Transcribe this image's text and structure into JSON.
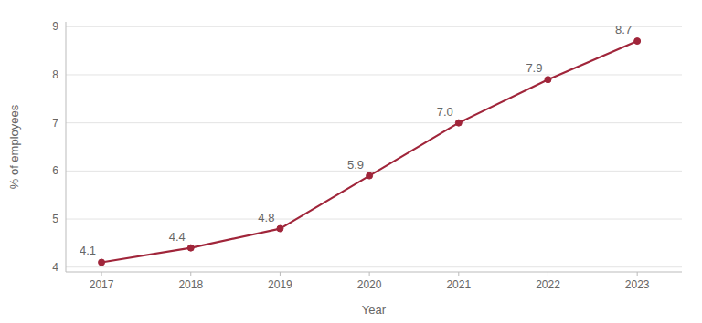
{
  "chart_data": {
    "type": "line",
    "x": [
      2017,
      2018,
      2019,
      2020,
      2021,
      2022,
      2023
    ],
    "values": [
      4.1,
      4.4,
      4.8,
      5.9,
      7.0,
      7.9,
      8.7
    ],
    "value_labels": [
      "4.1",
      "4.4",
      "4.8",
      "5.9",
      "7.0",
      "7.9",
      "8.7"
    ],
    "data_labels": true,
    "color": "#a0253a",
    "marker": "circle",
    "xlabel": "Year",
    "ylabel": "% of employees",
    "xlim": [
      2016.6,
      2023.5
    ],
    "xticks": [
      2017,
      2018,
      2019,
      2020,
      2021,
      2022,
      2023
    ],
    "ylim": [
      3.9,
      9.1
    ],
    "yticks": [
      4,
      5,
      6,
      7,
      8,
      9
    ],
    "grid": true
  }
}
